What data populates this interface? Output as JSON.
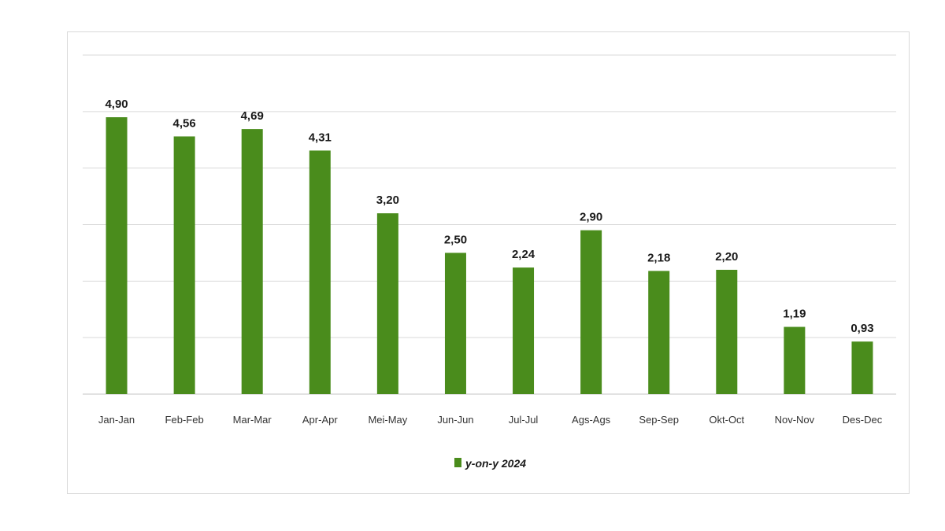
{
  "chart_data": {
    "type": "bar",
    "categories": [
      "Jan-Jan",
      "Feb-Feb",
      "Mar-Mar",
      "Apr-Apr",
      "Mei-May",
      "Jun-Jun",
      "Jul-Jul",
      "Ags-Ags",
      "Sep-Sep",
      "Okt-Oct",
      "Nov-Nov",
      "Des-Dec"
    ],
    "series": [
      {
        "name": "y-on-y 2024",
        "values": [
          4.9,
          4.56,
          4.69,
          4.31,
          3.2,
          2.5,
          2.24,
          2.9,
          2.18,
          2.2,
          1.19,
          0.93
        ],
        "labels": [
          "4,90",
          "4,56",
          "4,69",
          "4,31",
          "3,20",
          "2,50",
          "2,24",
          "2,90",
          "2,18",
          "2,20",
          "1,19",
          "0,93"
        ]
      }
    ],
    "ylim": [
      0,
      6
    ],
    "grid": true,
    "legend_position": "bottom",
    "colors": {
      "bar": "#4a8c1c",
      "grid": "#d9d9d9"
    }
  }
}
